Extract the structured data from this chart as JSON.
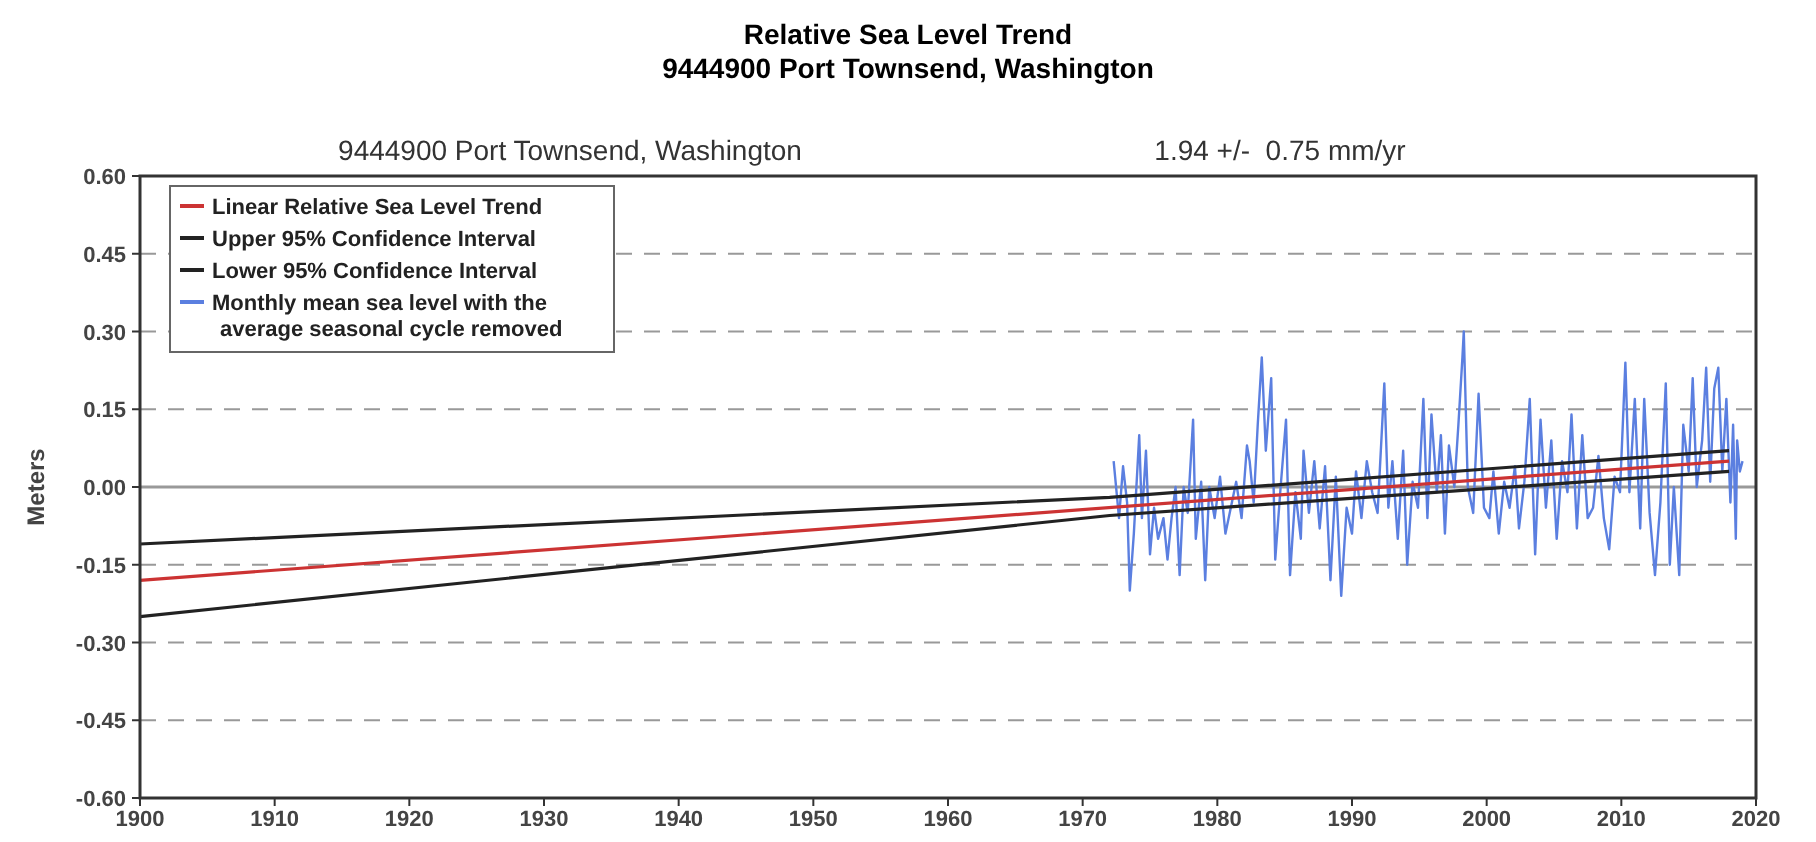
{
  "chart_data": {
    "type": "line",
    "title": "Relative Sea Level Trend\n9444900 Port Townsend, Washington",
    "subtitle": "9444900 Port Townsend, Washington",
    "annotations": [
      "1.94 +/-  0.75 mm/yr"
    ],
    "ylabel": "Meters",
    "xlim": [
      1900,
      2020
    ],
    "xticks": [
      1900,
      1910,
      1920,
      1930,
      1940,
      1950,
      1960,
      1970,
      1980,
      1990,
      2000,
      2010,
      2020
    ],
    "ylim": [
      -0.6,
      0.6
    ],
    "yticks": [
      {
        "value": -0.6,
        "label": "-0.60"
      },
      {
        "value": -0.45,
        "label": "-0.45"
      },
      {
        "value": -0.3,
        "label": "-0.30"
      },
      {
        "value": -0.15,
        "label": "-0.15"
      },
      {
        "value": 0,
        "label": "0.00"
      },
      {
        "value": 0.15,
        "label": "0.15"
      },
      {
        "value": 0.3,
        "label": "0.30"
      },
      {
        "value": 0.45,
        "label": "0.45"
      },
      {
        "value": 0.6,
        "label": "0.60"
      }
    ],
    "grid": "y",
    "legend": "top left",
    "marker": "none",
    "line_style": "solid",
    "ref_lines": [
      {
        "axis": "y",
        "value": 0,
        "color": "#999999"
      }
    ],
    "series": [
      {
        "name": "Linear Relative Sea Level Trend",
        "color": "#cc3333",
        "x": [
          1900,
          2018
        ],
        "values": [
          -0.18,
          0.05
        ]
      },
      {
        "name": "Upper 95% Confidence Interval",
        "color": "#222222",
        "x": [
          1900,
          1972,
          2018
        ],
        "values": [
          -0.11,
          -0.02,
          0.07
        ]
      },
      {
        "name": "Lower 95% Confidence Interval",
        "color": "#222222",
        "x": [
          1900,
          1972,
          2018
        ],
        "values": [
          -0.25,
          -0.055,
          0.03
        ]
      },
      {
        "name": "Monthly mean sea level with the average seasonal cycle removed",
        "color": "#5b7fe0",
        "x": [
          1972.3,
          1972.7,
          1973.0,
          1973.3,
          1973.5,
          1973.8,
          1974.2,
          1974.4,
          1974.7,
          1975.0,
          1975.3,
          1975.6,
          1976.0,
          1976.3,
          1976.6,
          1976.9,
          1977.2,
          1977.5,
          1977.8,
          1978.2,
          1978.4,
          1978.8,
          1979.1,
          1979.4,
          1979.8,
          1980.2,
          1980.6,
          1981.0,
          1981.4,
          1981.8,
          1982.2,
          1982.4,
          1982.7,
          1983.0,
          1983.3,
          1983.6,
          1984.0,
          1984.3,
          1984.7,
          1985.1,
          1985.4,
          1985.8,
          1986.2,
          1986.4,
          1986.8,
          1987.2,
          1987.6,
          1988.0,
          1988.4,
          1988.8,
          1989.2,
          1989.6,
          1990.0,
          1990.3,
          1990.7,
          1991.1,
          1991.5,
          1991.9,
          1992.4,
          1992.7,
          1993.0,
          1993.4,
          1993.8,
          1994.1,
          1994.5,
          1994.9,
          1995.3,
          1995.6,
          1995.9,
          1996.3,
          1996.6,
          1996.9,
          1997.2,
          1997.6,
          1997.9,
          1998.2,
          1998.3,
          1998.6,
          1999.0,
          1999.4,
          1999.8,
          2000.2,
          2000.5,
          2000.9,
          2001.3,
          2001.7,
          2002.1,
          2002.4,
          2002.8,
          2003.2,
          2003.6,
          2004.0,
          2004.4,
          2004.8,
          2005.2,
          2005.6,
          2006.0,
          2006.3,
          2006.7,
          2007.1,
          2007.5,
          2007.9,
          2008.3,
          2008.7,
          2009.1,
          2009.5,
          2009.9,
          2010.3,
          2010.6,
          2011.0,
          2011.4,
          2011.7,
          2012.1,
          2012.5,
          2012.9,
          2013.3,
          2013.6,
          2013.9,
          2014.3,
          2014.6,
          2015.0,
          2015.3,
          2015.6,
          2016.0,
          2016.3,
          2016.6,
          2016.9,
          2017.2,
          2017.5,
          2017.8,
          2018.1,
          2018.3,
          2018.5,
          2018.6,
          2018.8,
          2019.0
        ],
        "values": [
          0.05,
          -0.06,
          0.04,
          -0.03,
          -0.2,
          -0.09,
          0.1,
          -0.06,
          0.07,
          -0.13,
          -0.04,
          -0.1,
          -0.06,
          -0.14,
          -0.06,
          0.0,
          -0.17,
          0.0,
          -0.05,
          0.13,
          -0.1,
          0.01,
          -0.18,
          0.0,
          -0.06,
          0.02,
          -0.09,
          -0.04,
          0.01,
          -0.06,
          0.08,
          0.05,
          -0.03,
          0.12,
          0.25,
          0.07,
          0.21,
          -0.14,
          0.0,
          0.13,
          -0.17,
          -0.01,
          -0.1,
          0.07,
          -0.05,
          0.05,
          -0.08,
          0.04,
          -0.18,
          0.02,
          -0.21,
          -0.04,
          -0.09,
          0.03,
          -0.06,
          0.05,
          -0.01,
          -0.05,
          0.2,
          -0.04,
          0.05,
          -0.1,
          0.07,
          -0.15,
          0.01,
          -0.04,
          0.17,
          -0.06,
          0.14,
          -0.01,
          0.1,
          -0.09,
          0.08,
          0.0,
          0.12,
          0.25,
          0.3,
          0.0,
          -0.05,
          0.18,
          -0.04,
          -0.06,
          0.03,
          -0.09,
          0.01,
          -0.04,
          0.04,
          -0.08,
          0.01,
          0.17,
          -0.13,
          0.13,
          -0.04,
          0.09,
          -0.1,
          0.05,
          -0.01,
          0.14,
          -0.08,
          0.1,
          -0.06,
          -0.04,
          0.06,
          -0.06,
          -0.12,
          0.02,
          -0.01,
          0.24,
          -0.01,
          0.17,
          -0.08,
          0.17,
          -0.05,
          -0.17,
          -0.03,
          0.2,
          -0.15,
          0.0,
          -0.17,
          0.12,
          0.03,
          0.21,
          0.0,
          0.09,
          0.23,
          0.01,
          0.19,
          0.23,
          0.03,
          0.17,
          -0.03,
          0.12,
          -0.1,
          0.09,
          0.03,
          0.05
        ]
      }
    ]
  }
}
